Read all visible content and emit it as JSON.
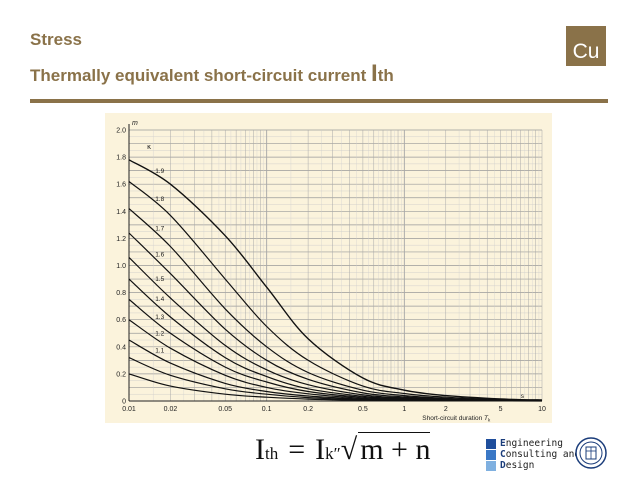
{
  "header": {
    "title": "Stress",
    "subtitle_prefix": "Thermally equivalent short-circuit current ",
    "subtitle_symbol": "I",
    "subtitle_sub": "th",
    "badge": "Cu"
  },
  "formula": {
    "lhs": "I",
    "lhs_sub": "th",
    "eq": "=",
    "rhs": "I",
    "rhs_sub": "k″",
    "radicand": "m + n"
  },
  "logo": {
    "line1_initial": "E",
    "line1_rest": "ngineering",
    "line2_initial": "C",
    "line2_rest": "onsulting and",
    "line3_initial": "D",
    "line3_rest": "esign",
    "colors": [
      "#1f4e9c",
      "#3a78c6",
      "#7fb0e0"
    ]
  },
  "chart_data": {
    "type": "line",
    "background": "#fbf3dc",
    "line_color": "#111111",
    "x_scale": "log",
    "xlim": [
      0.01,
      10
    ],
    "ylim": [
      0,
      2.0
    ],
    "x_ticks": [
      {
        "v": 0.01,
        "l": "0.01"
      },
      {
        "v": 0.02,
        "l": "0.02"
      },
      {
        "v": 0.05,
        "l": "0.05"
      },
      {
        "v": 0.1,
        "l": "0.1"
      },
      {
        "v": 0.2,
        "l": "0.2"
      },
      {
        "v": 0.5,
        "l": "0.5"
      },
      {
        "v": 1,
        "l": "1"
      },
      {
        "v": 2,
        "l": "2"
      },
      {
        "v": 5,
        "l": "5"
      },
      {
        "v": 10,
        "l": "10"
      }
    ],
    "y_ticks": [
      {
        "v": 0,
        "l": "0"
      },
      {
        "v": 0.2,
        "l": "0.2"
      },
      {
        "v": 0.4,
        "l": "0.4"
      },
      {
        "v": 0.6,
        "l": "0.6"
      },
      {
        "v": 0.8,
        "l": "0.8"
      },
      {
        "v": 1.0,
        "l": "1.0"
      },
      {
        "v": 1.2,
        "l": "1.2"
      },
      {
        "v": 1.4,
        "l": "1.4"
      },
      {
        "v": 1.6,
        "l": "1.6"
      },
      {
        "v": 1.8,
        "l": "1.8"
      },
      {
        "v": 2.0,
        "l": "2.0"
      }
    ],
    "ylabel": "m",
    "xlabel": "Short-circuit duration",
    "xlabel_symbol": "T",
    "xlabel_symbol_sub": "k",
    "x_unit": "s",
    "kappa_label": "κ",
    "grid": true,
    "series": [
      {
        "name": "1.9",
        "x": [
          0.01,
          0.02,
          0.05,
          0.1,
          0.2,
          0.5,
          1,
          2,
          5,
          10
        ],
        "y": [
          1.78,
          1.6,
          1.22,
          0.84,
          0.46,
          0.17,
          0.08,
          0.04,
          0.015,
          0.008
        ]
      },
      {
        "name": "1.8",
        "x": [
          0.01,
          0.02,
          0.05,
          0.1,
          0.2,
          0.5,
          1,
          2,
          5,
          10
        ],
        "y": [
          1.62,
          1.37,
          0.9,
          0.55,
          0.3,
          0.11,
          0.055,
          0.028,
          0.011,
          0.006
        ]
      },
      {
        "name": "1.7",
        "x": [
          0.01,
          0.02,
          0.05,
          0.1,
          0.2,
          0.5,
          1,
          2,
          5,
          10
        ],
        "y": [
          1.42,
          1.14,
          0.68,
          0.4,
          0.21,
          0.08,
          0.04,
          0.02,
          0.008,
          0.004
        ]
      },
      {
        "name": "1.6",
        "x": [
          0.01,
          0.02,
          0.05,
          0.1,
          0.2,
          0.5,
          1,
          2,
          5,
          10
        ],
        "y": [
          1.24,
          0.94,
          0.53,
          0.3,
          0.16,
          0.06,
          0.03,
          0.015,
          0.006,
          0.003
        ]
      },
      {
        "name": "1.5",
        "x": [
          0.01,
          0.02,
          0.05,
          0.1,
          0.2,
          0.5,
          1,
          2,
          5,
          10
        ],
        "y": [
          1.06,
          0.76,
          0.41,
          0.23,
          0.12,
          0.045,
          0.023,
          0.012,
          0.005,
          0.002
        ]
      },
      {
        "name": "1.4",
        "x": [
          0.01,
          0.02,
          0.05,
          0.1,
          0.2,
          0.5,
          1,
          2,
          5,
          10
        ],
        "y": [
          0.9,
          0.62,
          0.32,
          0.18,
          0.09,
          0.035,
          0.018,
          0.009,
          0.004,
          0.002
        ]
      },
      {
        "name": "1.3",
        "x": [
          0.01,
          0.02,
          0.05,
          0.1,
          0.2,
          0.5,
          1,
          2,
          5,
          10
        ],
        "y": [
          0.75,
          0.5,
          0.25,
          0.14,
          0.07,
          0.027,
          0.014,
          0.007,
          0.003,
          0.001
        ]
      },
      {
        "name": "1.2",
        "x": [
          0.01,
          0.02,
          0.05,
          0.1,
          0.2,
          0.5,
          1,
          2,
          5,
          10
        ],
        "y": [
          0.6,
          0.39,
          0.19,
          0.1,
          0.053,
          0.02,
          0.01,
          0.005,
          0.002,
          0.001
        ]
      },
      {
        "name": "1.1",
        "x": [
          0.01,
          0.02,
          0.05,
          0.1,
          0.2,
          0.5,
          1,
          2,
          5,
          10
        ],
        "y": [
          0.45,
          0.28,
          0.13,
          0.07,
          0.037,
          0.014,
          0.007,
          0.004,
          0.0015,
          0.001
        ]
      },
      {
        "name": "",
        "x": [
          0.01,
          0.02,
          0.05,
          0.1,
          0.2,
          0.5,
          1,
          2,
          5,
          10
        ],
        "y": [
          0.32,
          0.19,
          0.09,
          0.05,
          0.025,
          0.01,
          0.005,
          0.003,
          0.001,
          0.0005
        ]
      },
      {
        "name": "",
        "x": [
          0.01,
          0.02,
          0.05,
          0.1,
          0.2,
          0.5,
          1,
          2,
          5,
          10
        ],
        "y": [
          0.2,
          0.11,
          0.05,
          0.028,
          0.014,
          0.006,
          0.003,
          0.0015,
          0.0006,
          0.0003
        ]
      }
    ]
  }
}
